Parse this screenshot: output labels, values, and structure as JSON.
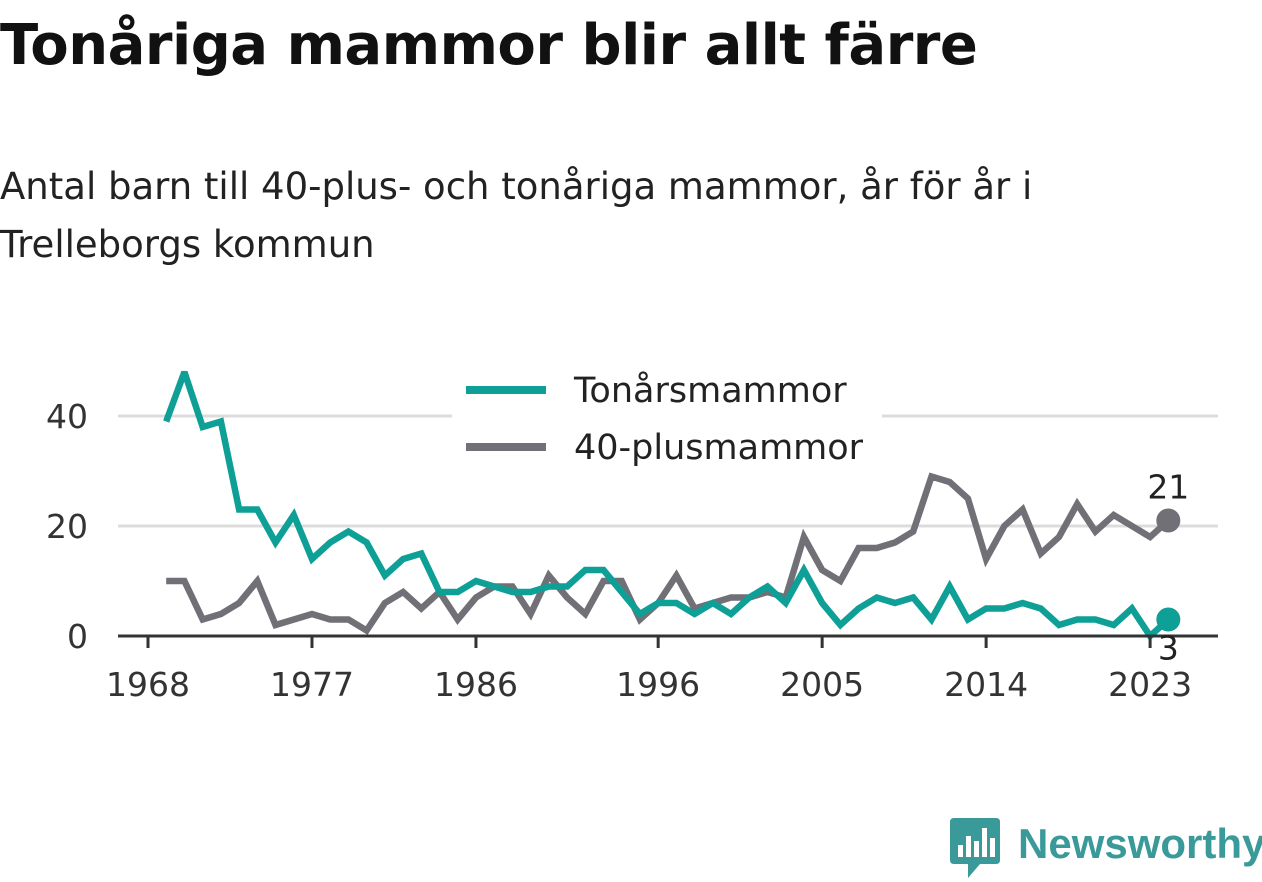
{
  "title": "Tonåriga mammor blir allt färre",
  "subtitle": "Antal barn till 40-plus- och tonåriga mammor, år för år i Trelleborgs kommun",
  "logo": {
    "text": "Newsworthy",
    "icon": "newsworthy-bar-chart-icon",
    "color": "#3a9a9a"
  },
  "chart_data": {
    "type": "line",
    "title": "Tonåriga mammor blir allt färre",
    "subtitle": "Antal barn till 40-plus- och tonåriga mammor, år för år i Trelleborgs kommun",
    "xlabel": "",
    "ylabel": "",
    "x": [
      1969,
      1970,
      1971,
      1972,
      1973,
      1974,
      1975,
      1976,
      1977,
      1978,
      1979,
      1980,
      1981,
      1982,
      1983,
      1984,
      1985,
      1986,
      1987,
      1988,
      1989,
      1990,
      1991,
      1992,
      1993,
      1994,
      1995,
      1996,
      1997,
      1998,
      1999,
      2000,
      2001,
      2002,
      2003,
      2004,
      2005,
      2006,
      2007,
      2008,
      2009,
      2010,
      2011,
      2012,
      2013,
      2014,
      2015,
      2016,
      2017,
      2018,
      2019,
      2020,
      2021,
      2022,
      2023,
      2024
    ],
    "xticks": [
      "1968",
      "1977",
      "1986",
      "1996",
      "2005",
      "2014",
      "2023"
    ],
    "xlim": [
      1968,
      2027
    ],
    "yticks": [
      "0",
      "20",
      "40"
    ],
    "ylim": [
      0,
      48
    ],
    "grid": true,
    "legend_position": "top-center",
    "series": [
      {
        "name": "Tonårsmammor",
        "color": "#0e9f96",
        "values": [
          39,
          48,
          38,
          39,
          23,
          23,
          17,
          22,
          14,
          17,
          19,
          17,
          11,
          14,
          15,
          8,
          8,
          10,
          9,
          8,
          8,
          9,
          9,
          12,
          12,
          8,
          4,
          6,
          6,
          4,
          6,
          4,
          7,
          9,
          6,
          12,
          6,
          2,
          5,
          7,
          6,
          7,
          3,
          9,
          3,
          5,
          5,
          6,
          5,
          2,
          3,
          3,
          2,
          5,
          0,
          3
        ],
        "end_label": "3"
      },
      {
        "name": "40-plusmammor",
        "color": "#717077",
        "values": [
          10,
          10,
          3,
          4,
          6,
          10,
          2,
          3,
          4,
          3,
          3,
          1,
          6,
          8,
          5,
          8,
          3,
          7,
          9,
          9,
          4,
          11,
          7,
          4,
          10,
          10,
          3,
          6,
          11,
          5,
          6,
          7,
          7,
          8,
          7,
          18,
          12,
          10,
          16,
          16,
          17,
          19,
          29,
          28,
          25,
          14,
          20,
          23,
          15,
          18,
          24,
          19,
          22,
          20,
          18,
          21
        ],
        "end_label": "21"
      }
    ]
  }
}
